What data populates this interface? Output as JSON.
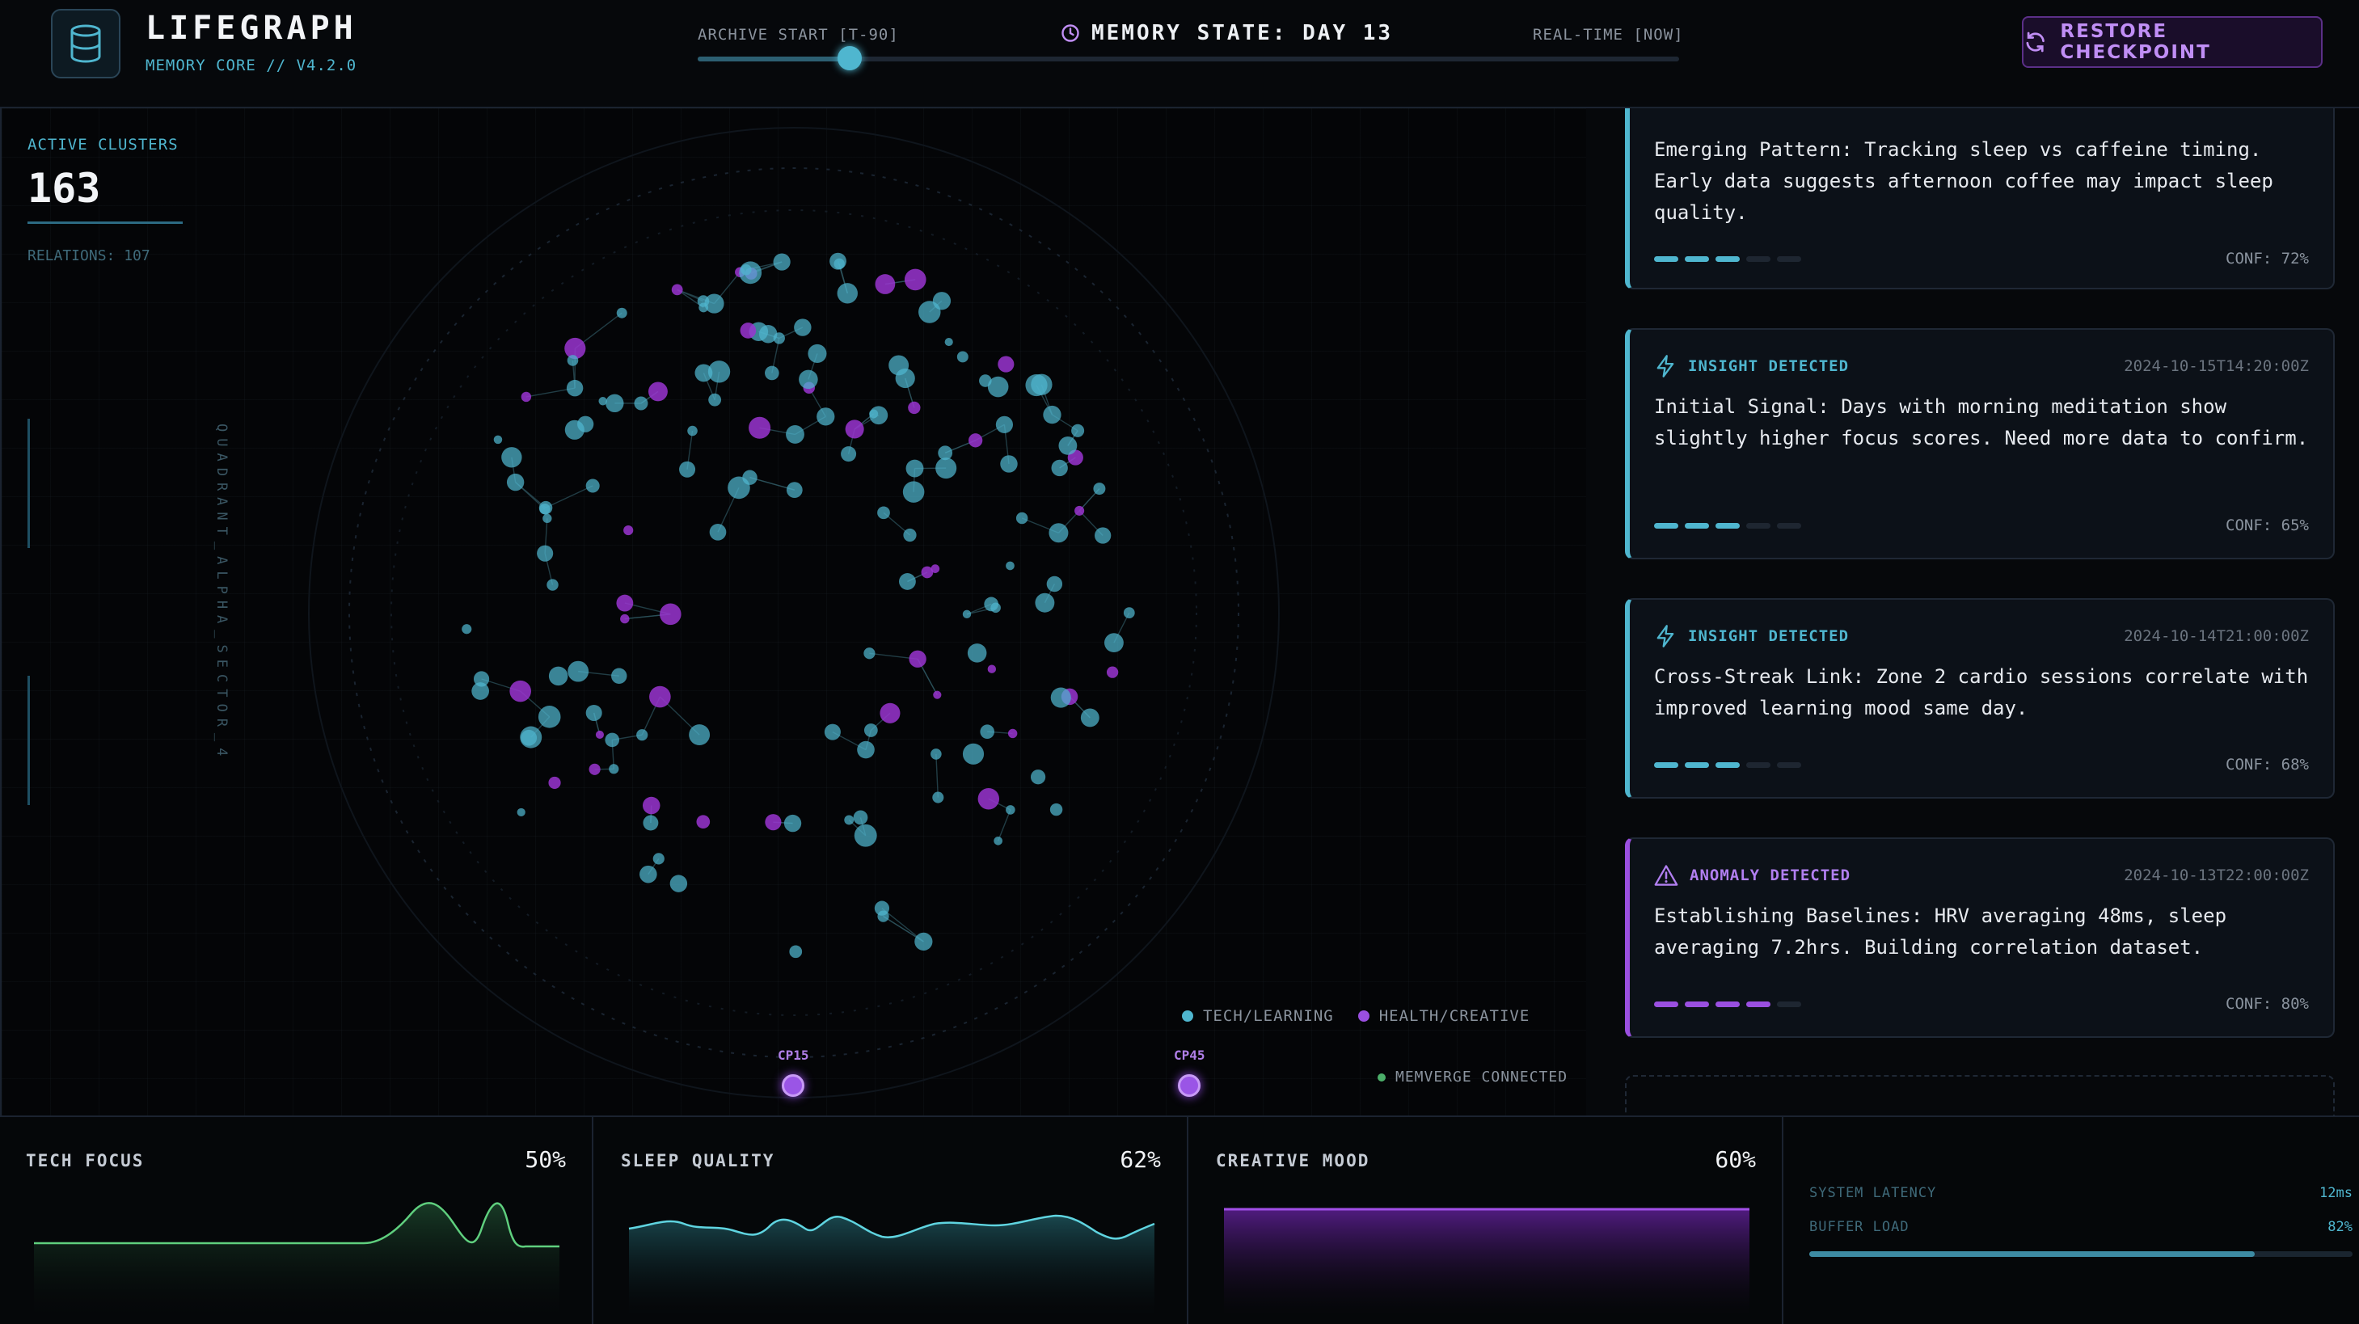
{
  "header": {
    "title": "LIFEGRAPH",
    "subtitle": "MEMORY CORE // V4.2.0",
    "archive_start": "ARCHIVE START [T-90]",
    "memory_state": "MEMORY STATE: DAY 13",
    "realtime": "REAL-TIME [NOW]",
    "timeline_position": 0.155,
    "restore_label": "RESTORE CHECKPOINT"
  },
  "graph": {
    "clusters_label": "ACTIVE CLUSTERS",
    "clusters_value": "163",
    "relations": "RELATIONS: 107",
    "quadrant": "QUADRANT_ALPHA_SECTOR_4",
    "legend": [
      {
        "label": "TECH/LEARNING",
        "color": "#4fb6cf"
      },
      {
        "label": "HEALTH/CREATIVE",
        "color": "#9a4fe0"
      }
    ],
    "status": "MEMVERGE CONNECTED",
    "checkpoints": [
      "CP15",
      "CP45"
    ],
    "colors": {
      "tech": "#4fb6cf",
      "health": "#9a35d0",
      "status": "#4caf6a"
    }
  },
  "insights": [
    {
      "type": "insight",
      "tag": "",
      "time": "",
      "text": "Emerging Pattern: Tracking sleep vs caffeine timing. Early data suggests afternoon coffee may impact sleep quality.",
      "conf": "CONF: 72%",
      "level": 3
    },
    {
      "type": "insight",
      "tag": "INSIGHT DETECTED",
      "time": "2024-10-15T14:20:00Z",
      "text": "Initial Signal: Days with morning meditation show slightly higher focus scores. Need more data to confirm.",
      "conf": "CONF: 65%",
      "level": 3
    },
    {
      "type": "insight",
      "tag": "INSIGHT DETECTED",
      "time": "2024-10-14T21:00:00Z",
      "text": "Cross-Streak Link: Zone 2 cardio sessions correlate with improved learning mood same day.",
      "conf": "CONF: 68%",
      "level": 3
    },
    {
      "type": "anomaly",
      "tag": "ANOMALY DETECTED",
      "time": "2024-10-13T22:00:00Z",
      "text": "Establishing Baselines: HRV averaging 48ms, sleep averaging 7.2hrs. Building correlation dataset.",
      "conf": "CONF: 80%",
      "level": 4
    }
  ],
  "metrics": [
    {
      "label": "TECH FOCUS",
      "value": "50%",
      "color": "#5fcf7e"
    },
    {
      "label": "SLEEP QUALITY",
      "value": "62%",
      "color": "#5fd4e0"
    },
    {
      "label": "CREATIVE MOOD",
      "value": "60%",
      "color": "#a24fe8"
    }
  ],
  "system": {
    "latency_label": "SYSTEM LATENCY",
    "latency_value": "12ms",
    "buffer_label": "BUFFER LOAD",
    "buffer_value": "82%",
    "buffer_level": 0.82
  }
}
